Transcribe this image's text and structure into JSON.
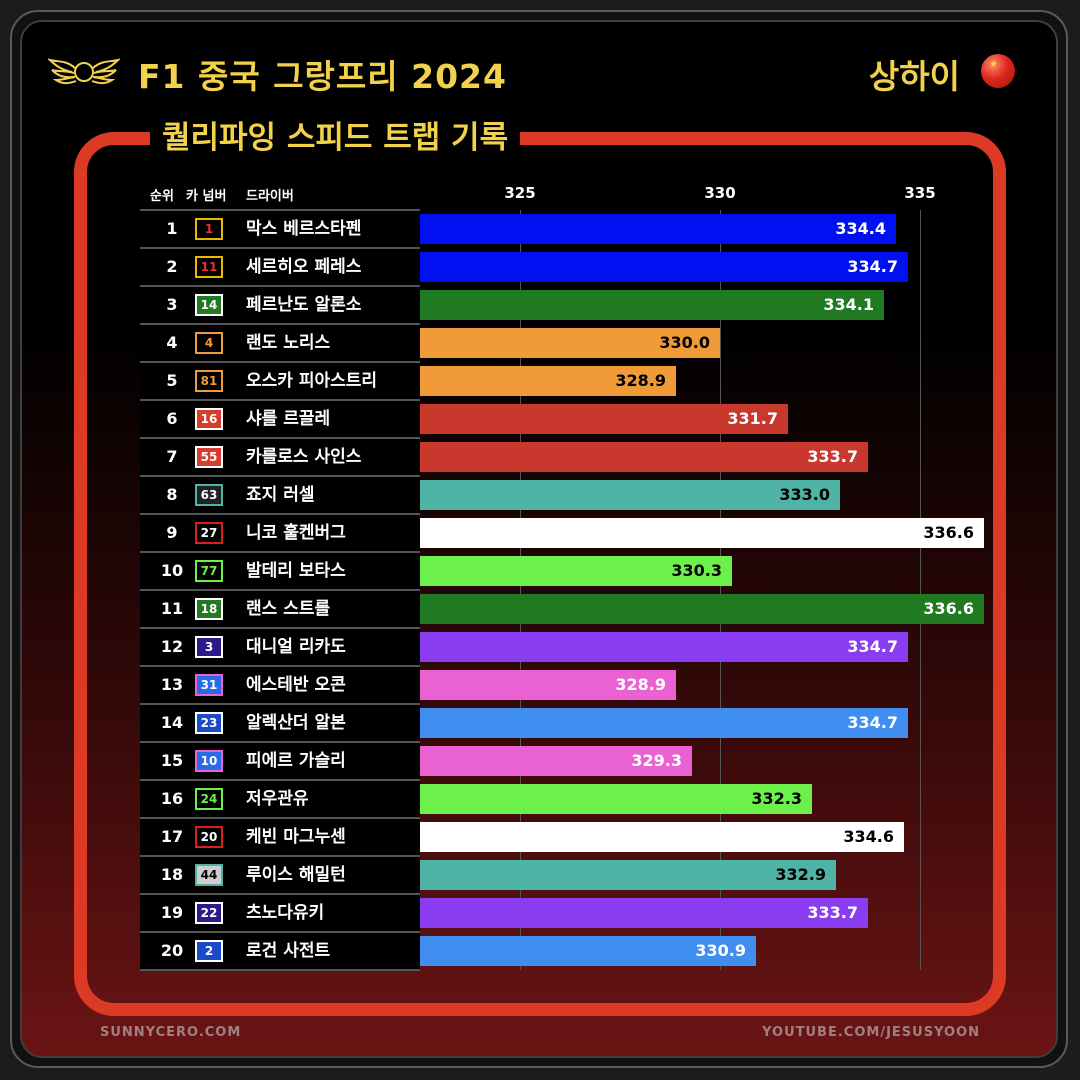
{
  "header": {
    "title": "F1 중국 그랑프리 2024",
    "location": "상하이",
    "subtitle": "퀄리파잉 스피드 트랩 기록"
  },
  "table_headers": {
    "rank": "순위",
    "car_number": "카 넘버",
    "driver": "드라이버"
  },
  "footer": {
    "left": "SUNNYCERO.COM",
    "right": "YOUTUBE.COM/JESUSYOON"
  },
  "colors": {
    "accent": "#f2d24a",
    "frame": "#dd3a26"
  },
  "icons": {
    "logo": "winged-wheel-logo-icon",
    "flag": "china-flag-icon"
  },
  "chart_data": {
    "type": "bar",
    "orientation": "horizontal",
    "xlim": [
      322.5,
      337.5
    ],
    "xticks": [
      325,
      330,
      335
    ],
    "grid": true,
    "rows": [
      {
        "rank": "1",
        "number": "1",
        "driver": "막스 베르스타펜",
        "value": 334.4,
        "color": "#0010f0",
        "label_color": "#ffffff",
        "badge_border": "#e8b800",
        "badge_bg": "#000000",
        "badge_text": "#e83030"
      },
      {
        "rank": "2",
        "number": "11",
        "driver": "세르히오 페레스",
        "value": 334.7,
        "color": "#0010f0",
        "label_color": "#ffffff",
        "badge_border": "#e8b800",
        "badge_bg": "#000000",
        "badge_text": "#e83030"
      },
      {
        "rank": "3",
        "number": "14",
        "driver": "페르난도 알론소",
        "value": 334.1,
        "color": "#1f7a22",
        "label_color": "#ffffff",
        "badge_border": "#ffffff",
        "badge_bg": "#1f7a22",
        "badge_text": "#ffffff"
      },
      {
        "rank": "4",
        "number": "4",
        "driver": "랜도 노리스",
        "value": 330.0,
        "color": "#f09a38",
        "label_color": "#000000",
        "badge_border": "#f09a38",
        "badge_bg": "#000000",
        "badge_text": "#f09a38"
      },
      {
        "rank": "5",
        "number": "81",
        "driver": "오스카 피아스트리",
        "value": 328.9,
        "color": "#f09a38",
        "label_color": "#000000",
        "badge_border": "#f09a38",
        "badge_bg": "#000000",
        "badge_text": "#f09a38"
      },
      {
        "rank": "6",
        "number": "16",
        "driver": "샤를 르끌레",
        "value": 331.7,
        "color": "#c8382c",
        "label_color": "#ffffff",
        "badge_border": "#ffffff",
        "badge_bg": "#d83a2c",
        "badge_text": "#ffffff"
      },
      {
        "rank": "7",
        "number": "55",
        "driver": "카를로스 사인스",
        "value": 333.7,
        "color": "#c8382c",
        "label_color": "#ffffff",
        "badge_border": "#ffffff",
        "badge_bg": "#d83a2c",
        "badge_text": "#ffffff"
      },
      {
        "rank": "8",
        "number": "63",
        "driver": "죠지 러셀",
        "value": 333.0,
        "color": "#4fb3a6",
        "label_color": "#000000",
        "badge_border": "#4fb3a6",
        "badge_bg": "#222222",
        "badge_text": "#ffffff"
      },
      {
        "rank": "9",
        "number": "27",
        "driver": "니코 훌켄버그",
        "value": 336.6,
        "color": "#ffffff",
        "label_color": "#000000",
        "badge_border": "#d82020",
        "badge_bg": "#000000",
        "badge_text": "#ffffff"
      },
      {
        "rank": "10",
        "number": "77",
        "driver": "발테리 보타스",
        "value": 330.3,
        "color": "#6cf04a",
        "label_color": "#000000",
        "badge_border": "#6cf04a",
        "badge_bg": "#000000",
        "badge_text": "#6cf04a"
      },
      {
        "rank": "11",
        "number": "18",
        "driver": "랜스 스트롤",
        "value": 336.6,
        "color": "#1f7a22",
        "label_color": "#ffffff",
        "badge_border": "#ffffff",
        "badge_bg": "#1f7a22",
        "badge_text": "#ffffff"
      },
      {
        "rank": "12",
        "number": "3",
        "driver": "대니얼 리카도",
        "value": 334.7,
        "color": "#8a3cf0",
        "label_color": "#ffffff",
        "badge_border": "#ffffff",
        "badge_bg": "#2a1a8a",
        "badge_text": "#ffffff"
      },
      {
        "rank": "13",
        "number": "31",
        "driver": "에스테반 오콘",
        "value": 328.9,
        "color": "#ea62d2",
        "label_color": "#ffffff",
        "badge_border": "#ea62d2",
        "badge_bg": "#2a6ae8",
        "badge_text": "#ffffff"
      },
      {
        "rank": "14",
        "number": "23",
        "driver": "알렉산더 알본",
        "value": 334.7,
        "color": "#3f8ef0",
        "label_color": "#ffffff",
        "badge_border": "#ffffff",
        "badge_bg": "#1a4ac8",
        "badge_text": "#ffffff"
      },
      {
        "rank": "15",
        "number": "10",
        "driver": "피에르 가슬리",
        "value": 329.3,
        "color": "#ea62d2",
        "label_color": "#ffffff",
        "badge_border": "#ea62d2",
        "badge_bg": "#2a6ae8",
        "badge_text": "#ffffff"
      },
      {
        "rank": "16",
        "number": "24",
        "driver": "저우관유",
        "value": 332.3,
        "color": "#6cf04a",
        "label_color": "#000000",
        "badge_border": "#6cf04a",
        "badge_bg": "#000000",
        "badge_text": "#6cf04a"
      },
      {
        "rank": "17",
        "number": "20",
        "driver": "케빈 마그누센",
        "value": 334.6,
        "color": "#ffffff",
        "label_color": "#000000",
        "badge_border": "#d82020",
        "badge_bg": "#000000",
        "badge_text": "#ffffff"
      },
      {
        "rank": "18",
        "number": "44",
        "driver": "루이스 해밀턴",
        "value": 332.9,
        "color": "#4fb3a6",
        "label_color": "#000000",
        "badge_border": "#4fb3a6",
        "badge_bg": "#cfcfcf",
        "badge_text": "#000000"
      },
      {
        "rank": "19",
        "number": "22",
        "driver": "츠노다유키",
        "value": 333.7,
        "color": "#8a3cf0",
        "label_color": "#ffffff",
        "badge_border": "#ffffff",
        "badge_bg": "#2a1a8a",
        "badge_text": "#ffffff"
      },
      {
        "rank": "20",
        "number": "2",
        "driver": "로건 사전트",
        "value": 330.9,
        "color": "#3f8ef0",
        "label_color": "#ffffff",
        "badge_border": "#ffffff",
        "badge_bg": "#1a4ac8",
        "badge_text": "#ffffff"
      }
    ]
  }
}
